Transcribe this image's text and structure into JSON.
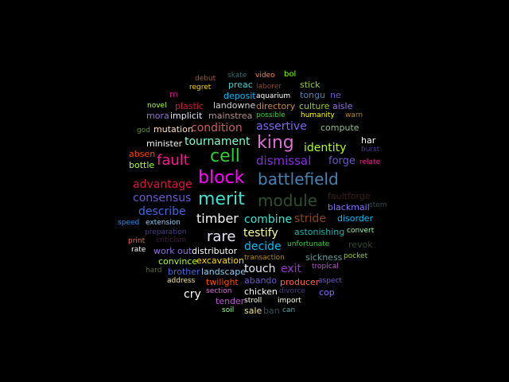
{
  "background": "#000000",
  "words": [
    {
      "text": "debut",
      "color": "#a0522d"
    },
    {
      "text": "skate",
      "color": "#2f6f6f"
    },
    {
      "text": "video",
      "color": "#ff7f50"
    },
    {
      "text": "bol",
      "color": "#7fff00"
    },
    {
      "text": "regret",
      "color": "#ffd700"
    },
    {
      "text": "preac",
      "color": "#48d1cc"
    },
    {
      "text": "laborer",
      "color": "#8b4513"
    },
    {
      "text": "stick",
      "color": "#9acd32"
    },
    {
      "text": "m",
      "color": "#c71585"
    },
    {
      "text": "deposit",
      "color": "#00bfff"
    },
    {
      "text": "aquarium",
      "color": "#ffffff"
    },
    {
      "text": "tongu",
      "color": "#4682b4"
    },
    {
      "text": "ne",
      "color": "#6a5acd"
    },
    {
      "text": "novel",
      "color": "#adff2f"
    },
    {
      "text": "plastic",
      "color": "#dc143c"
    },
    {
      "text": "landowne",
      "color": "#d3d3d3"
    },
    {
      "text": "directory",
      "color": "#cd853f"
    },
    {
      "text": "culture",
      "color": "#9acd32"
    },
    {
      "text": "aisle",
      "color": "#9370db"
    },
    {
      "text": "mora",
      "color": "#9370db"
    },
    {
      "text": "implicit",
      "color": "#e6e6fa"
    },
    {
      "text": "mainstrea",
      "color": "#bc8f8f"
    },
    {
      "text": "possible",
      "color": "#32cd32"
    },
    {
      "text": "humanity",
      "color": "#ffff00"
    },
    {
      "text": "warn",
      "color": "#b8860b"
    },
    {
      "text": "god",
      "color": "#6b8e23"
    },
    {
      "text": "mutation",
      "color": "#ffdab9"
    },
    {
      "text": "condition",
      "color": "#cd5c5c"
    },
    {
      "text": "assertive",
      "color": "#7b68ee"
    },
    {
      "text": "compute",
      "color": "#8fbc8f"
    },
    {
      "text": "minister",
      "color": "#f5f5f5"
    },
    {
      "text": "tournament",
      "color": "#7fffd4"
    },
    {
      "text": "king",
      "color": "#da70d6"
    },
    {
      "text": "identity",
      "color": "#adff2f"
    },
    {
      "text": "har",
      "color": "#ffffff"
    },
    {
      "text": "absen",
      "color": "#ff4500"
    },
    {
      "text": "cell",
      "color": "#32cd32"
    },
    {
      "text": "burst",
      "color": "#483d8b"
    },
    {
      "text": "fault",
      "color": "#ff1493"
    },
    {
      "text": "bottle",
      "color": "#adff2f"
    },
    {
      "text": "dismissal",
      "color": "#8a2be2"
    },
    {
      "text": "forge",
      "color": "#6a5acd"
    },
    {
      "text": "relate",
      "color": "#ff1493"
    },
    {
      "text": "block",
      "color": "#ff00ff"
    },
    {
      "text": "battlefield",
      "color": "#4682b4"
    },
    {
      "text": "advantage",
      "color": "#dc143c"
    },
    {
      "text": "faultforge",
      "color": "#3b1e1e"
    },
    {
      "text": "consensus",
      "color": "#6a5acd"
    },
    {
      "text": "merit",
      "color": "#40e0d0"
    },
    {
      "text": "module",
      "color": "#2f4f2f"
    },
    {
      "text": "stem",
      "color": "#2f4f4f"
    },
    {
      "text": "blackmail",
      "color": "#8470ff"
    },
    {
      "text": "describe",
      "color": "#4169e1"
    },
    {
      "text": "timber",
      "color": "#f5f5f5"
    },
    {
      "text": "combine",
      "color": "#40e0d0"
    },
    {
      "text": "stride",
      "color": "#8b4513"
    },
    {
      "text": "disorder",
      "color": "#00bfff"
    },
    {
      "text": "speed",
      "color": "#1e90ff"
    },
    {
      "text": "extension",
      "color": "#87cefa"
    },
    {
      "text": "testify",
      "color": "#ffff99"
    },
    {
      "text": "astonishing",
      "color": "#20b2aa"
    },
    {
      "text": "convert",
      "color": "#98fb98"
    },
    {
      "text": "preparation",
      "color": "#483d8b"
    },
    {
      "text": "rare",
      "color": "#e6e6fa"
    },
    {
      "text": "print",
      "color": "#ff6347"
    },
    {
      "text": "criticism",
      "color": "#3d1f3d"
    },
    {
      "text": "revok",
      "color": "#2e4d2e"
    },
    {
      "text": "decide",
      "color": "#00bfff"
    },
    {
      "text": "unfortunate",
      "color": "#32cd32"
    },
    {
      "text": "rate",
      "color": "#ffffff"
    },
    {
      "text": "work out",
      "color": "#9370db"
    },
    {
      "text": "distributor",
      "color": "#ffffff"
    },
    {
      "text": "pocket",
      "color": "#9acd32"
    },
    {
      "text": "transaction",
      "color": "#b8860b"
    },
    {
      "text": "sickness",
      "color": "#5f9ea0"
    },
    {
      "text": "convince",
      "color": "#adff2f"
    },
    {
      "text": "excavation",
      "color": "#ffd700"
    },
    {
      "text": "touch",
      "color": "#e6e6fa"
    },
    {
      "text": "exit",
      "color": "#9932cc"
    },
    {
      "text": "tropical",
      "color": "#ba55d3"
    },
    {
      "text": "hard",
      "color": "#556b2f"
    },
    {
      "text": "brother",
      "color": "#4169e1"
    },
    {
      "text": "landscape",
      "color": "#87cefa"
    },
    {
      "text": "address",
      "color": "#f0e68c"
    },
    {
      "text": "twilight",
      "color": "#ff4500"
    },
    {
      "text": "abando",
      "color": "#6a5acd"
    },
    {
      "text": "producer",
      "color": "#ff6347"
    },
    {
      "text": "aspect",
      "color": "#6a5acd"
    },
    {
      "text": "section",
      "color": "#da70d6"
    },
    {
      "text": "chicken",
      "color": "#ffffff"
    },
    {
      "text": "divorce",
      "color": "#483d8b"
    },
    {
      "text": "cop",
      "color": "#8470ff"
    },
    {
      "text": "cry",
      "color": "#ffffff"
    },
    {
      "text": "tender",
      "color": "#ba55d3"
    },
    {
      "text": "stroll",
      "color": "#ffffe0"
    },
    {
      "text": "import",
      "color": "#ffffe0"
    },
    {
      "text": "soil",
      "color": "#98fb98"
    },
    {
      "text": "sale",
      "color": "#f0e68c"
    },
    {
      "text": "ban",
      "color": "#2f4f4f"
    },
    {
      "text": "can",
      "color": "#5f9ea0"
    }
  ]
}
